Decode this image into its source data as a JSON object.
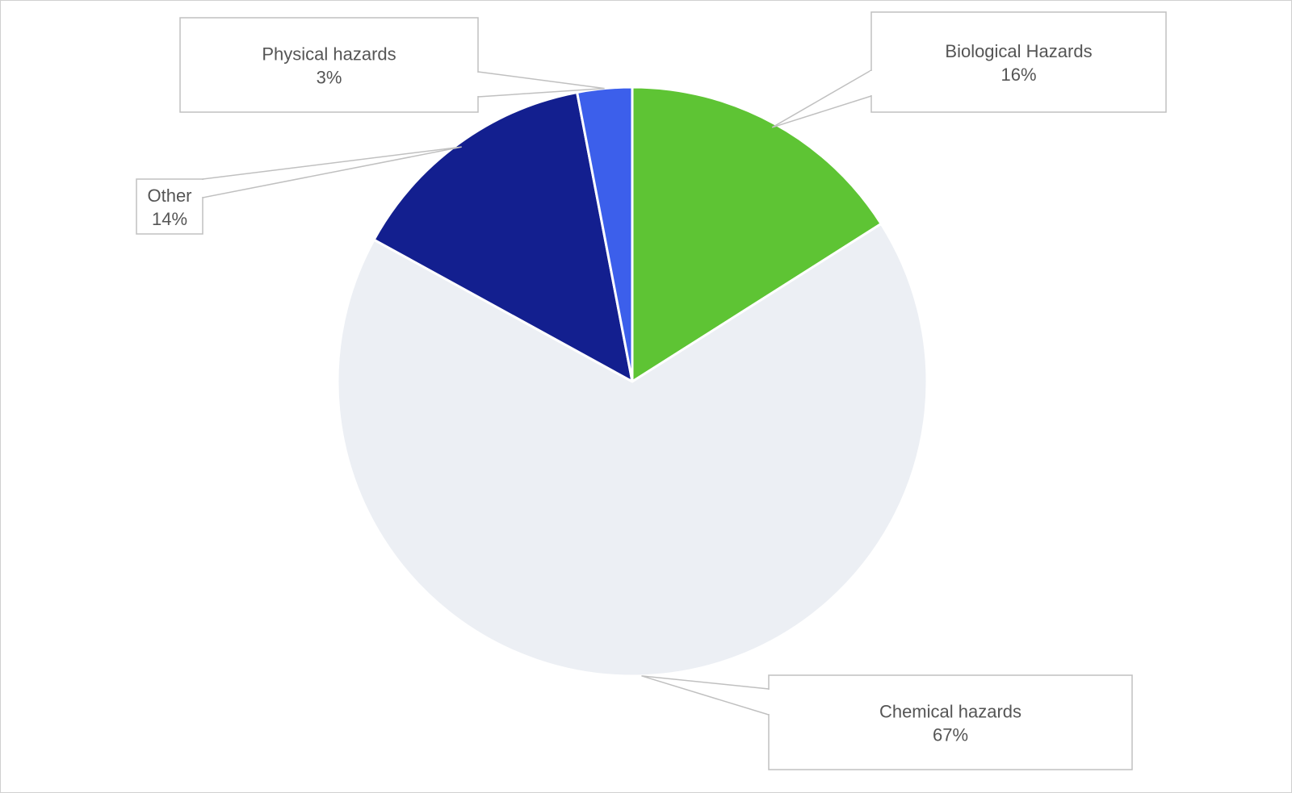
{
  "chart_data": {
    "type": "pie",
    "start_angle_deg": 0,
    "direction": "clockwise",
    "slices": [
      {
        "label": "Biological Hazards",
        "value": 16,
        "value_label": "16%",
        "color": "#5ec434"
      },
      {
        "label": "Chemical hazards",
        "value": 67,
        "value_label": "67%",
        "color": "#eceff4"
      },
      {
        "label": "Other",
        "value": 14,
        "value_label": "14%",
        "color": "#131f8f"
      },
      {
        "label": "Physical hazards",
        "value": 3,
        "value_label": "3%",
        "color": "#3c5feb"
      }
    ],
    "label_style": "callout boxes with leader lines",
    "slice_separator_color": "#ffffff",
    "leader_line_color": "#c0c0c0"
  }
}
